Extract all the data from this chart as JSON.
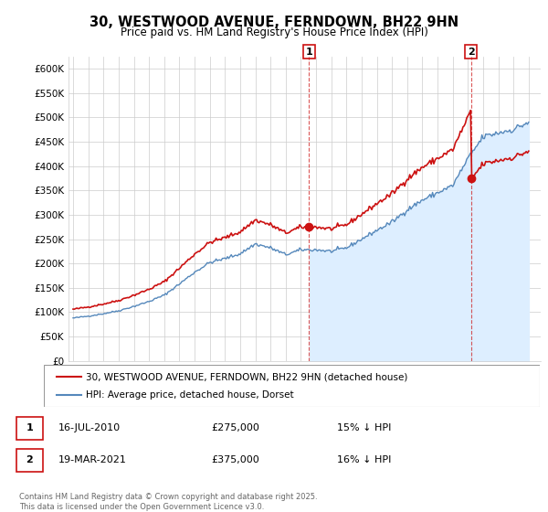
{
  "title": "30, WESTWOOD AVENUE, FERNDOWN, BH22 9HN",
  "subtitle": "Price paid vs. HM Land Registry's House Price Index (HPI)",
  "hpi_color": "#5588bb",
  "hpi_fill_color": "#ddeeff",
  "price_color": "#cc1111",
  "marker1_x": 2010.54,
  "marker1_y": 275000,
  "marker2_x": 2021.21,
  "marker2_y": 375000,
  "legend_line1": "30, WESTWOOD AVENUE, FERNDOWN, BH22 9HN (detached house)",
  "legend_line2": "HPI: Average price, detached house, Dorset",
  "footer": "Contains HM Land Registry data © Crown copyright and database right 2025.\nThis data is licensed under the Open Government Licence v3.0.",
  "ylim": [
    0,
    625000
  ],
  "xlim_left": 1994.7,
  "xlim_right": 2025.8,
  "yticks": [
    0,
    50000,
    100000,
    150000,
    200000,
    250000,
    300000,
    350000,
    400000,
    450000,
    500000,
    550000,
    600000
  ],
  "ytick_labels": [
    "£0",
    "£50K",
    "£100K",
    "£150K",
    "£200K",
    "£250K",
    "£300K",
    "£350K",
    "£400K",
    "£450K",
    "£500K",
    "£550K",
    "£600K"
  ]
}
